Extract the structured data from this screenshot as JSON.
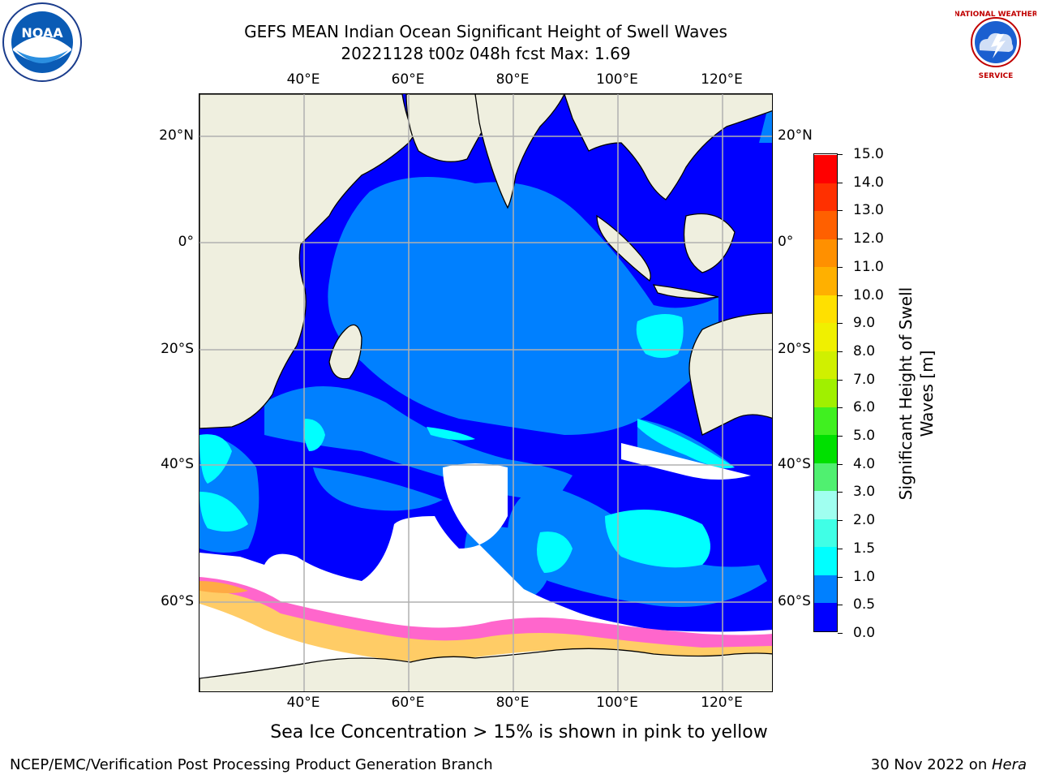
{
  "header": {
    "title_line1": "GEFS MEAN Indian Ocean Significant Height of Swell Waves",
    "title_line2": "20221128 t00z 048h fcst   Max: 1.69"
  },
  "logos": {
    "left": {
      "icon": "noaa-logo-icon",
      "text": "NOAA"
    },
    "right": {
      "icon": "nws-logo-icon",
      "text": "NATIONAL WEATHER SERVICE"
    }
  },
  "map": {
    "lon_labels": [
      "40°E",
      "60°E",
      "80°E",
      "100°E",
      "120°E"
    ],
    "lat_labels": [
      "20°N",
      "0°",
      "20°S",
      "40°S",
      "60°S"
    ],
    "colors": {
      "land": "#efefdf",
      "no_data": "#ffffff",
      "gridline": "#b0b0b0",
      "coastline": "#000000",
      "sea_ice": "#ff66cc"
    }
  },
  "colorbar": {
    "title": "Significant Height of Swell Waves [m]",
    "tick_labels": [
      "15.0",
      "14.0",
      "13.0",
      "12.0",
      "11.0",
      "10.0",
      "9.0",
      "8.0",
      "7.0",
      "6.0",
      "5.0",
      "4.0",
      "3.0",
      "2.0",
      "1.5",
      "1.0",
      "0.5",
      "0.0"
    ],
    "bands": [
      {
        "from": 0.0,
        "to": 0.5,
        "color": "#0000ff"
      },
      {
        "from": 0.5,
        "to": 1.0,
        "color": "#0080ff"
      },
      {
        "from": 1.0,
        "to": 1.5,
        "color": "#00ffff"
      },
      {
        "from": 1.5,
        "to": 2.0,
        "color": "#40ffe6"
      },
      {
        "from": 2.0,
        "to": 3.0,
        "color": "#a0fff0"
      },
      {
        "from": 3.0,
        "to": 4.0,
        "color": "#50f070"
      },
      {
        "from": 4.0,
        "to": 5.0,
        "color": "#00e000"
      },
      {
        "from": 5.0,
        "to": 6.0,
        "color": "#40f020"
      },
      {
        "from": 6.0,
        "to": 7.0,
        "color": "#a0f000"
      },
      {
        "from": 7.0,
        "to": 8.0,
        "color": "#d0f000"
      },
      {
        "from": 8.0,
        "to": 9.0,
        "color": "#f0f000"
      },
      {
        "from": 9.0,
        "to": 10.0,
        "color": "#ffe000"
      },
      {
        "from": 10.0,
        "to": 11.0,
        "color": "#ffb000"
      },
      {
        "from": 11.0,
        "to": 12.0,
        "color": "#ff9000"
      },
      {
        "from": 12.0,
        "to": 13.0,
        "color": "#ff6000"
      },
      {
        "from": 13.0,
        "to": 14.0,
        "color": "#ff3000"
      },
      {
        "from": 14.0,
        "to": 15.0,
        "color": "#ff0000"
      }
    ]
  },
  "footnote": "Sea Ice Concentration > 15% is shown in pink to yellow",
  "footer": {
    "left": "NCEP/EMC/Verification Post Processing Product Generation Branch",
    "right_prefix": "30 Nov 2022 on ",
    "right_host": "Hera"
  }
}
